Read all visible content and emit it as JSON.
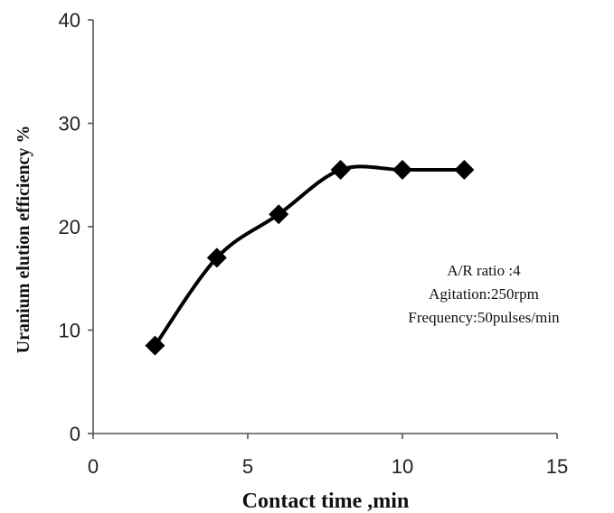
{
  "chart_data": {
    "type": "line",
    "title": "",
    "xlabel": "Contact time ,min",
    "ylabel": "Uranium elution efficiency %",
    "xlim": [
      0,
      15
    ],
    "ylim": [
      0,
      40
    ],
    "x_ticks": [
      0,
      5,
      10,
      15
    ],
    "y_ticks": [
      0,
      10,
      20,
      30,
      40
    ],
    "grid": false,
    "smooth": true,
    "marker": "diamond",
    "line_color": "#000000",
    "series": [
      {
        "x": [
          2,
          4,
          6,
          8,
          10,
          12
        ],
        "values": [
          8.5,
          17,
          21.2,
          25.5,
          25.5,
          25.5
        ]
      }
    ],
    "annotations": [
      "A/R ratio :4",
      "Agitation:250rpm",
      "Frequency:50pulses/min"
    ]
  }
}
